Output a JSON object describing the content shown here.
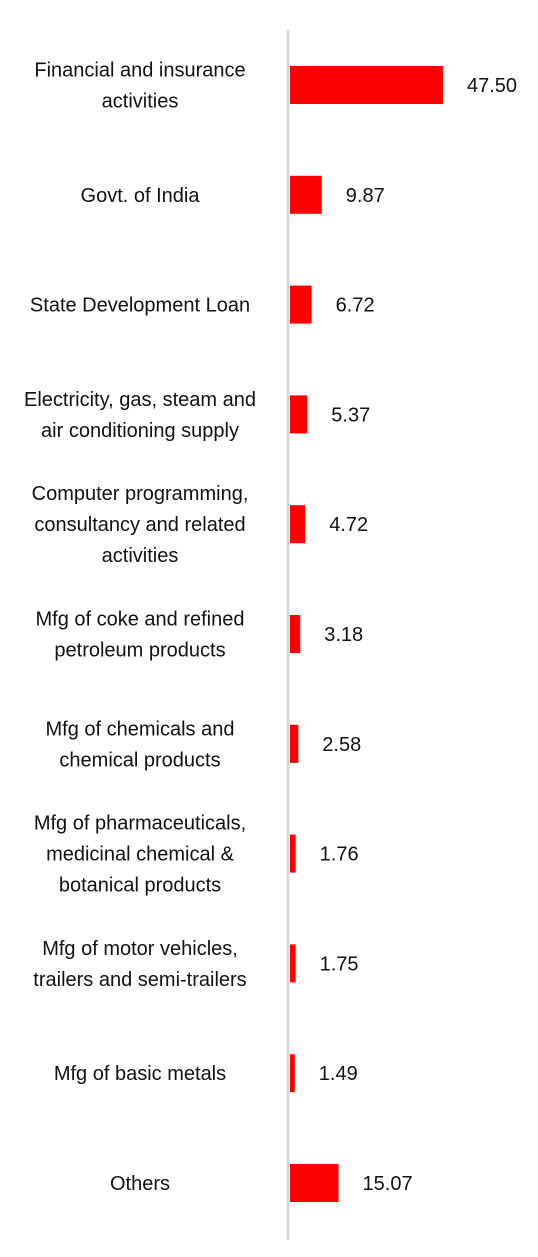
{
  "chart_data": {
    "type": "bar",
    "orientation": "horizontal",
    "title": "",
    "xlabel": "",
    "ylabel": "",
    "grid": false,
    "legend": "none",
    "bar_color": "#ff0000",
    "axis_color": "#d9d9d9",
    "xlim": [
      0,
      50
    ],
    "categories": [
      [
        "Financial and insurance",
        "activities"
      ],
      [
        "Govt. of India"
      ],
      [
        "State Development Loan"
      ],
      [
        "Electricity, gas, steam and",
        "air conditioning supply"
      ],
      [
        "Computer programming,",
        "consultancy and related",
        "activities"
      ],
      [
        "Mfg of coke and refined",
        "petroleum products"
      ],
      [
        "Mfg of chemicals and",
        "chemical products"
      ],
      [
        "Mfg of pharmaceuticals,",
        "medicinal chemical &",
        "botanical products"
      ],
      [
        "Mfg of motor vehicles,",
        "trailers and semi-trailers"
      ],
      [
        "Mfg of basic metals"
      ],
      [
        "Others"
      ]
    ],
    "values": [
      47.5,
      9.87,
      6.72,
      5.37,
      4.72,
      3.18,
      2.58,
      1.76,
      1.75,
      1.49,
      15.07
    ],
    "value_labels": [
      "47.50",
      "9.87",
      "6.72",
      "5.37",
      "4.72",
      "3.18",
      "2.58",
      "1.76",
      "1.75",
      "1.49",
      "15.07"
    ]
  }
}
